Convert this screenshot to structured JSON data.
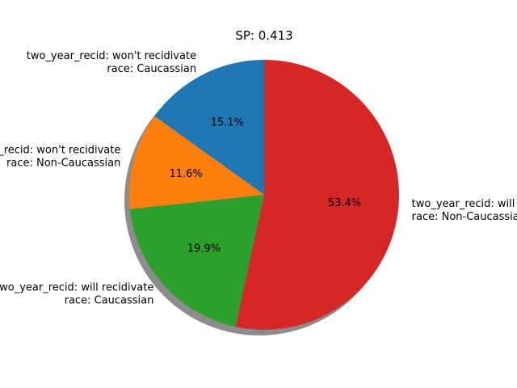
{
  "chart_data": {
    "type": "pie",
    "title": "SP: 0.413",
    "slices": [
      {
        "label_lines": [
          "two_year_recid: won't recidivate",
          "race: Caucassian"
        ],
        "value": 15.1,
        "pct_label": "15.1%",
        "color": "#1f77b4"
      },
      {
        "label_lines": [
          "two_year_recid: won't recidivate",
          "race: Non-Caucassian"
        ],
        "value": 11.6,
        "pct_label": "11.6%",
        "color": "#ff7f0e"
      },
      {
        "label_lines": [
          "two_year_recid: will recidivate",
          "race: Caucassian"
        ],
        "value": 19.9,
        "pct_label": "19.9%",
        "color": "#2ca02c"
      },
      {
        "label_lines": [
          "two_year_recid: will recidivate",
          "race: Non-Caucassian"
        ],
        "value": 53.4,
        "pct_label": "53.4%",
        "color": "#d62728"
      }
    ],
    "start_angle_deg": 90,
    "direction": "counterclockwise",
    "shadow": true
  }
}
